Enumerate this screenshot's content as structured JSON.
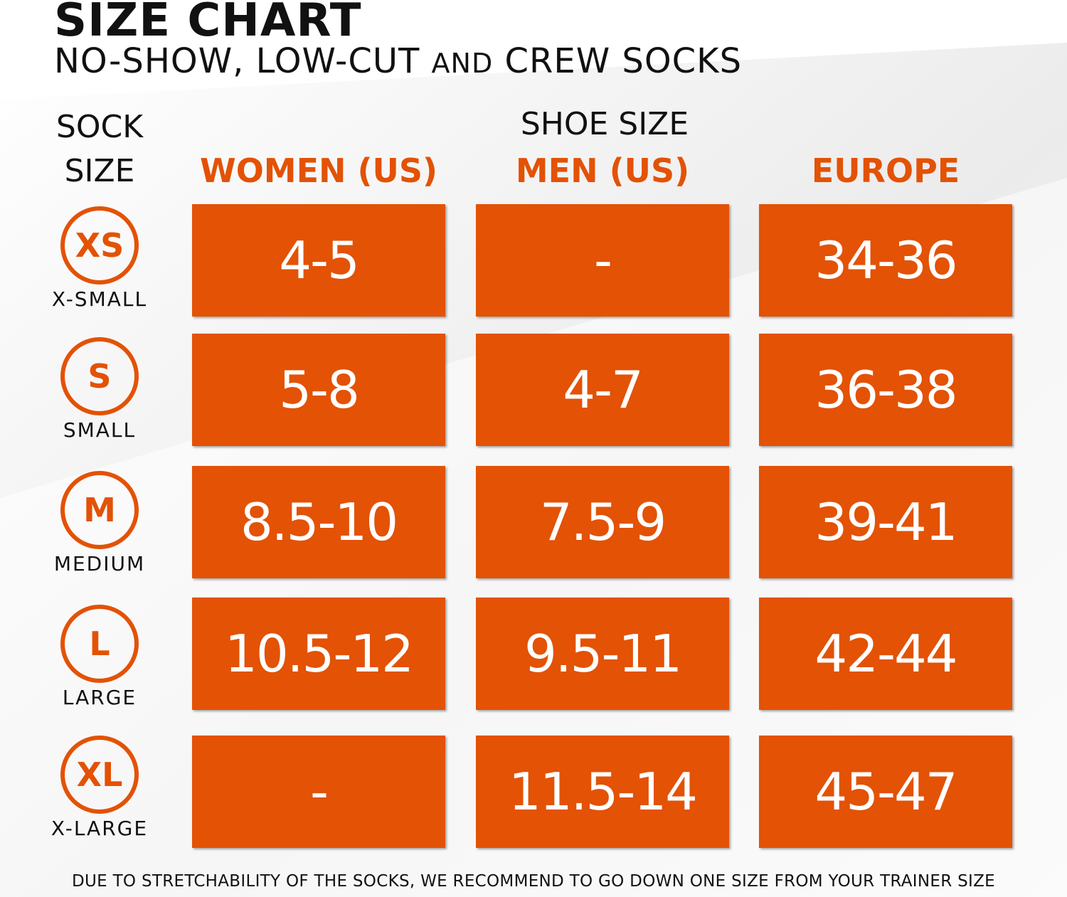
{
  "colors": {
    "accent": "#E35205",
    "text": "#111111",
    "cell_text": "#ffffff",
    "background_light": "#ffffff",
    "background_shade": "#ececec"
  },
  "title": "SIZE CHART",
  "subtitle": {
    "part1": "NO-SHOW, LOW-CUT ",
    "part2": "AND",
    "part3": " CREW SOCKS"
  },
  "sock_size_label": "SOCK\nSIZE",
  "shoe_size_label": "SHOE SIZE",
  "columns": [
    "WOMEN (US)",
    "MEN (US)",
    "EUROPE"
  ],
  "rows": [
    {
      "code": "XS",
      "name": "X-SMALL",
      "women": "4-5",
      "men": "-",
      "europe": "34-36"
    },
    {
      "code": "S",
      "name": "SMALL",
      "women": "5-8",
      "men": "4-7",
      "europe": "36-38"
    },
    {
      "code": "M",
      "name": "MEDIUM",
      "women": "8.5-10",
      "men": "7.5-9",
      "europe": "39-41"
    },
    {
      "code": "L",
      "name": "LARGE",
      "women": "10.5-12",
      "men": "9.5-11",
      "europe": "42-44"
    },
    {
      "code": "XL",
      "name": "X-LARGE",
      "women": "-",
      "men": "11.5-14",
      "europe": "45-47"
    }
  ],
  "footer": "DUE TO STRETCHABILITY OF THE SOCKS, WE RECOMMEND TO GO DOWN ONE SIZE FROM YOUR TRAINER SIZE"
}
